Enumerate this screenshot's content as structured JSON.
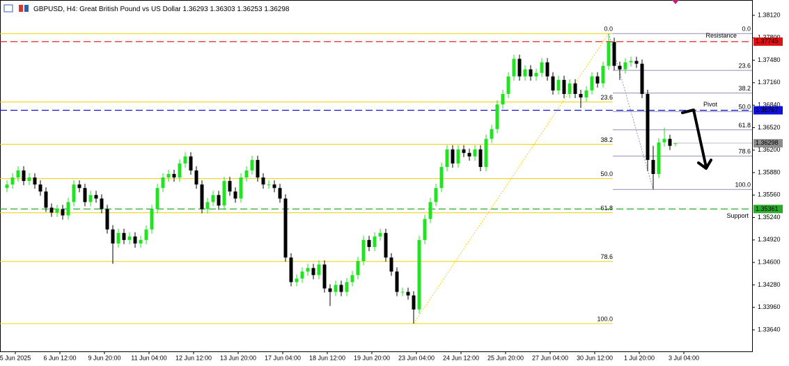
{
  "chart_data": {
    "type": "candlestick",
    "title": "GBPUSD, H4:  Great British Pound vs US Dollar",
    "up_color": "#22e322",
    "down_color": "#000000",
    "ylim": [
      1.33333,
      1.38338
    ],
    "yticks": [
      {
        "value": 1.3812,
        "label": "1.38120"
      },
      {
        "value": 1.378,
        "label": "1.37800"
      },
      {
        "value": 1.3748,
        "label": "1.37480"
      },
      {
        "value": 1.3716,
        "label": "1.37160"
      },
      {
        "value": 1.3684,
        "label": "1.36840"
      },
      {
        "value": 1.3652,
        "label": "1.36520"
      },
      {
        "value": 1.362,
        "label": "1.36200"
      },
      {
        "value": 1.3588,
        "label": "1.35880"
      },
      {
        "value": 1.3556,
        "label": "1.35560"
      },
      {
        "value": 1.3524,
        "label": "1.35240"
      },
      {
        "value": 1.3492,
        "label": "1.34920"
      },
      {
        "value": 1.346,
        "label": "1.34600"
      },
      {
        "value": 1.3428,
        "label": "1.34280"
      },
      {
        "value": 1.3396,
        "label": "1.33960"
      },
      {
        "value": 1.3364,
        "label": "1.33640"
      }
    ],
    "x_labels": [
      "5 Jun 2025",
      "6 Jun 12:00",
      "9 Jun 20:00",
      "11 Jun 04:00",
      "12 Jun 12:00",
      "13 Jun 20:00",
      "17 Jun 04:00",
      "18 Jun 12:00",
      "19 Jun 20:00",
      "23 Jun 04:00",
      "24 Jun 12:00",
      "25 Jun 20:00",
      "27 Jun 04:00",
      "30 Jun 12:00",
      "1 Jul 20:00",
      "3 Jul 04:00"
    ],
    "candles": [
      [
        1.3566,
        1.3577,
        1.356,
        1.3571
      ],
      [
        1.3571,
        1.3587,
        1.3565,
        1.3581
      ],
      [
        1.3581,
        1.3597,
        1.3575,
        1.3591
      ],
      [
        1.3591,
        1.3597,
        1.357,
        1.3576
      ],
      [
        1.3576,
        1.3587,
        1.357,
        1.3581
      ],
      [
        1.3581,
        1.3587,
        1.3565,
        1.3571
      ],
      [
        1.3571,
        1.3577,
        1.3555,
        1.3561
      ],
      [
        1.3561,
        1.3567,
        1.3532,
        1.3538
      ],
      [
        1.3538,
        1.3544,
        1.3525,
        1.3531
      ],
      [
        1.3531,
        1.3542,
        1.3525,
        1.3536
      ],
      [
        1.3536,
        1.3542,
        1.3521,
        1.3527
      ],
      [
        1.3527,
        1.3552,
        1.3521,
        1.3546
      ],
      [
        1.3546,
        1.3577,
        1.354,
        1.3571
      ],
      [
        1.3571,
        1.3577,
        1.356,
        1.3566
      ],
      [
        1.3566,
        1.3572,
        1.354,
        1.3546
      ],
      [
        1.3546,
        1.3562,
        1.354,
        1.3556
      ],
      [
        1.3556,
        1.3562,
        1.3545,
        1.3551
      ],
      [
        1.3551,
        1.3557,
        1.353,
        1.3536
      ],
      [
        1.3536,
        1.3542,
        1.3501,
        1.3507
      ],
      [
        1.3507,
        1.3513,
        1.3458,
        1.3487
      ],
      [
        1.3487,
        1.3508,
        1.3481,
        1.3502
      ],
      [
        1.3502,
        1.3508,
        1.3486,
        1.3492
      ],
      [
        1.3492,
        1.3503,
        1.3486,
        1.3497
      ],
      [
        1.3497,
        1.3503,
        1.3481,
        1.3487
      ],
      [
        1.3487,
        1.3498,
        1.3481,
        1.3492
      ],
      [
        1.3492,
        1.3513,
        1.3486,
        1.3507
      ],
      [
        1.3507,
        1.3542,
        1.3501,
        1.3536
      ],
      [
        1.3536,
        1.3572,
        1.353,
        1.3566
      ],
      [
        1.3566,
        1.3587,
        1.356,
        1.3581
      ],
      [
        1.3581,
        1.3592,
        1.3575,
        1.3586
      ],
      [
        1.3586,
        1.3592,
        1.3575,
        1.3581
      ],
      [
        1.3581,
        1.3607,
        1.3575,
        1.3601
      ],
      [
        1.3601,
        1.3617,
        1.3595,
        1.3611
      ],
      [
        1.3611,
        1.3617,
        1.3585,
        1.3591
      ],
      [
        1.3591,
        1.3597,
        1.3565,
        1.3571
      ],
      [
        1.3571,
        1.3577,
        1.353,
        1.3536
      ],
      [
        1.3536,
        1.3552,
        1.353,
        1.3546
      ],
      [
        1.3546,
        1.3562,
        1.354,
        1.3556
      ],
      [
        1.3556,
        1.3562,
        1.3535,
        1.3541
      ],
      [
        1.3541,
        1.3582,
        1.3535,
        1.3576
      ],
      [
        1.3576,
        1.3582,
        1.3555,
        1.3561
      ],
      [
        1.3561,
        1.3567,
        1.3545,
        1.3551
      ],
      [
        1.3551,
        1.3587,
        1.3545,
        1.3581
      ],
      [
        1.3581,
        1.3597,
        1.3575,
        1.3591
      ],
      [
        1.3591,
        1.3612,
        1.3585,
        1.3606
      ],
      [
        1.3606,
        1.3612,
        1.3575,
        1.3581
      ],
      [
        1.3581,
        1.3587,
        1.3565,
        1.3571
      ],
      [
        1.3571,
        1.3577,
        1.3565,
        1.3571
      ],
      [
        1.3571,
        1.3577,
        1.356,
        1.3566
      ],
      [
        1.3566,
        1.3572,
        1.3545,
        1.3551
      ],
      [
        1.3551,
        1.3557,
        1.3461,
        1.3467
      ],
      [
        1.3467,
        1.3473,
        1.3426,
        1.3432
      ],
      [
        1.3432,
        1.3443,
        1.3426,
        1.3437
      ],
      [
        1.3437,
        1.3453,
        1.3431,
        1.3447
      ],
      [
        1.3447,
        1.3458,
        1.3441,
        1.3452
      ],
      [
        1.3452,
        1.3458,
        1.3436,
        1.3442
      ],
      [
        1.3442,
        1.3463,
        1.3436,
        1.3457
      ],
      [
        1.3457,
        1.3463,
        1.3417,
        1.3423
      ],
      [
        1.3423,
        1.3429,
        1.3398,
        1.3418
      ],
      [
        1.3418,
        1.3434,
        1.3412,
        1.3428
      ],
      [
        1.3428,
        1.3434,
        1.3412,
        1.3418
      ],
      [
        1.3418,
        1.3438,
        1.3412,
        1.3432
      ],
      [
        1.3432,
        1.3448,
        1.3426,
        1.3442
      ],
      [
        1.3442,
        1.3468,
        1.3436,
        1.3462
      ],
      [
        1.3462,
        1.3498,
        1.3456,
        1.3492
      ],
      [
        1.3492,
        1.3498,
        1.3476,
        1.3482
      ],
      [
        1.3482,
        1.3503,
        1.3476,
        1.3497
      ],
      [
        1.3497,
        1.3508,
        1.3491,
        1.3502
      ],
      [
        1.3502,
        1.3508,
        1.3461,
        1.3467
      ],
      [
        1.3467,
        1.3473,
        1.3441,
        1.3447
      ],
      [
        1.3447,
        1.3453,
        1.3412,
        1.3418
      ],
      [
        1.3418,
        1.3424,
        1.3412,
        1.3418
      ],
      [
        1.3418,
        1.3424,
        1.3407,
        1.3413
      ],
      [
        1.3413,
        1.3419,
        1.3373,
        1.3393
      ],
      [
        1.3393,
        1.3498,
        1.3387,
        1.3492
      ],
      [
        1.3492,
        1.3528,
        1.3486,
        1.3522
      ],
      [
        1.3522,
        1.3552,
        1.3516,
        1.3546
      ],
      [
        1.3546,
        1.3572,
        1.354,
        1.3566
      ],
      [
        1.3566,
        1.3602,
        1.356,
        1.3596
      ],
      [
        1.3596,
        1.3627,
        1.359,
        1.3621
      ],
      [
        1.3621,
        1.3627,
        1.3595,
        1.3601
      ],
      [
        1.3601,
        1.3627,
        1.3595,
        1.3621
      ],
      [
        1.3621,
        1.3627,
        1.361,
        1.3616
      ],
      [
        1.3616,
        1.3622,
        1.3605,
        1.3611
      ],
      [
        1.3611,
        1.3627,
        1.3605,
        1.3621
      ],
      [
        1.3621,
        1.3627,
        1.359,
        1.3596
      ],
      [
        1.3596,
        1.3642,
        1.359,
        1.3636
      ],
      [
        1.3636,
        1.3656,
        1.363,
        1.365
      ],
      [
        1.365,
        1.3691,
        1.3644,
        1.3685
      ],
      [
        1.3685,
        1.3706,
        1.3679,
        1.37
      ],
      [
        1.37,
        1.3731,
        1.3694,
        1.3725
      ],
      [
        1.3725,
        1.3756,
        1.3719,
        1.375
      ],
      [
        1.375,
        1.3756,
        1.3719,
        1.3725
      ],
      [
        1.3725,
        1.3741,
        1.3719,
        1.3735
      ],
      [
        1.3735,
        1.3741,
        1.3719,
        1.3725
      ],
      [
        1.3725,
        1.3736,
        1.3719,
        1.373
      ],
      [
        1.373,
        1.3751,
        1.3724,
        1.3745
      ],
      [
        1.3745,
        1.3751,
        1.3719,
        1.3725
      ],
      [
        1.3725,
        1.3731,
        1.3699,
        1.3705
      ],
      [
        1.3705,
        1.3726,
        1.3699,
        1.372
      ],
      [
        1.372,
        1.3726,
        1.3694,
        1.37
      ],
      [
        1.37,
        1.3721,
        1.3694,
        1.3715
      ],
      [
        1.3715,
        1.3721,
        1.3694,
        1.37
      ],
      [
        1.37,
        1.3706,
        1.368,
        1.3695
      ],
      [
        1.3695,
        1.3711,
        1.3689,
        1.3705
      ],
      [
        1.3705,
        1.3731,
        1.3699,
        1.3725
      ],
      [
        1.3725,
        1.3731,
        1.3709,
        1.3715
      ],
      [
        1.3715,
        1.3746,
        1.3709,
        1.374
      ],
      [
        1.374,
        1.3786,
        1.3734,
        1.3774
      ],
      [
        1.3774,
        1.378,
        1.3734,
        1.374
      ],
      [
        1.374,
        1.3746,
        1.372,
        1.3735
      ],
      [
        1.3735,
        1.3751,
        1.3729,
        1.3745
      ],
      [
        1.3745,
        1.3753,
        1.3739,
        1.3747
      ],
      [
        1.3747,
        1.3753,
        1.3737,
        1.3743
      ],
      [
        1.3743,
        1.3749,
        1.3694,
        1.37
      ],
      [
        1.37,
        1.3706,
        1.359,
        1.3606
      ],
      [
        1.3606,
        1.3626,
        1.3564,
        1.3586
      ],
      [
        1.3586,
        1.3637,
        1.358,
        1.3631
      ],
      [
        1.3631,
        1.3652,
        1.3625,
        1.3636
      ],
      [
        1.3636,
        1.3642,
        1.362,
        1.3626
      ],
      [
        1.36293,
        1.36303,
        1.36253,
        1.36298
      ]
    ],
    "lines": [
      {
        "name": "Resistance",
        "value": 1.37745,
        "color": "#e01010"
      },
      {
        "name": "Pivot",
        "value": 1.36767,
        "color": "#1010d8"
      },
      {
        "name": "Support",
        "value": 1.35361,
        "color": "#2aaa2a"
      }
    ],
    "fibs": [
      {
        "high": 1.3786,
        "low": 1.3373,
        "color": "#f0d000",
        "label_color": "#c8a000",
        "levels": [
          {
            "value": 0,
            "label": "0.0"
          },
          23.6,
          38.2,
          {
            "value": 50,
            "label": "50.0"
          },
          61.8,
          78.6,
          {
            "value": 100,
            "label": "100.0"
          }
        ]
      },
      {
        "high": 1.3786,
        "low": 1.3564,
        "color": "#9090b8",
        "label_color": "#888888",
        "levels": [
          {
            "value": 0,
            "label": "0.0"
          },
          23.6,
          38.2,
          {
            "value": 50,
            "label": "50.0"
          },
          61.8,
          78.6,
          {
            "value": 100,
            "label": "100.0"
          }
        ]
      }
    ]
  }
}
